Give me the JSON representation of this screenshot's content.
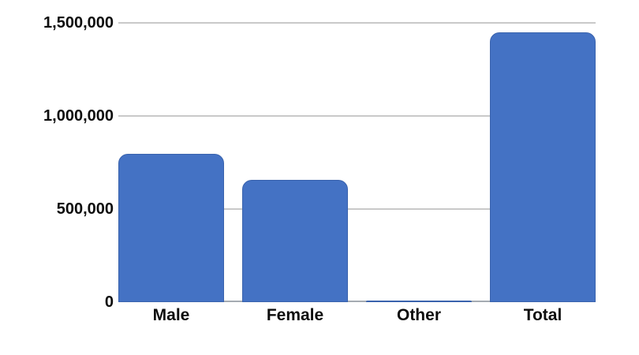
{
  "chart_data": {
    "type": "bar",
    "title": "",
    "xlabel": "",
    "ylabel": "",
    "categories": [
      "Male",
      "Female",
      "Other",
      "Total"
    ],
    "values": [
      795000,
      655000,
      8000,
      1450000
    ],
    "ylim": [
      0,
      1500000
    ],
    "yticks": [
      {
        "value": 0,
        "label": "0"
      },
      {
        "value": 500000,
        "label": "500,000"
      },
      {
        "value": 1000000,
        "label": "1,000,000"
      },
      {
        "value": 1500000,
        "label": "1,500,000"
      }
    ],
    "grid": true,
    "legend": false,
    "colors": {
      "bar_fill": "#4472c4",
      "bar_border": "#3a63ad",
      "gridline": "#c9c9c9",
      "baseline": "#a5abb2",
      "text": "#0d0d0d"
    }
  }
}
